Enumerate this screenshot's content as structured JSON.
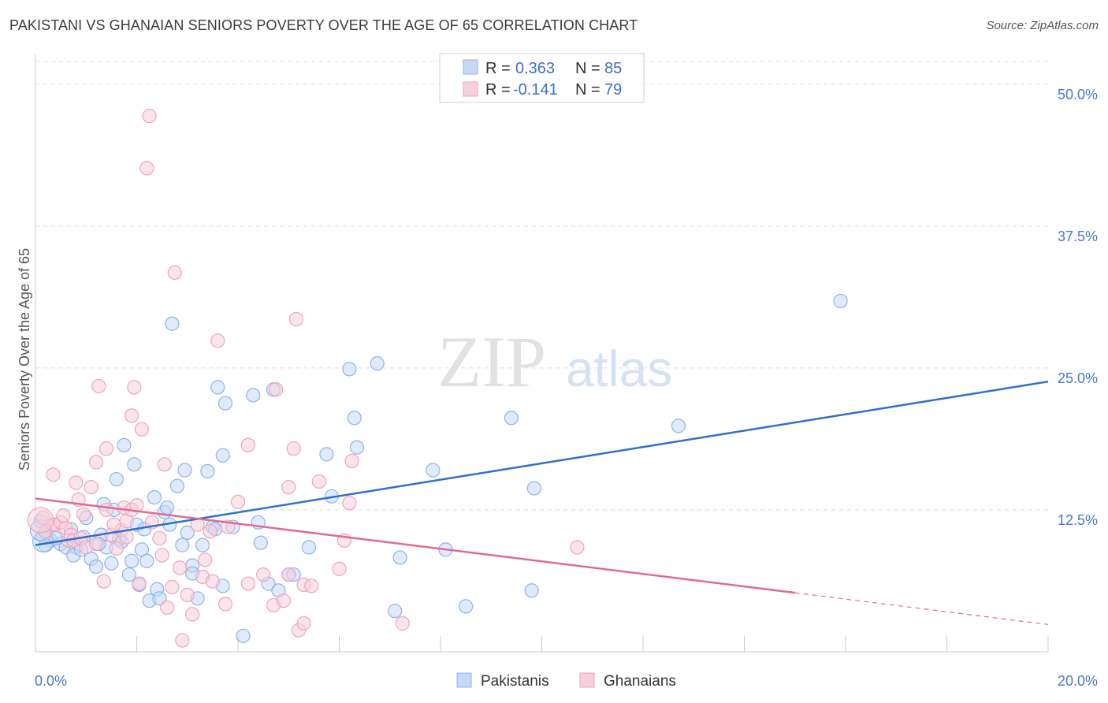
{
  "title": "PAKISTANI VS GHANAIAN SENIORS POVERTY OVER THE AGE OF 65 CORRELATION CHART",
  "source": "Source: ZipAtlas.com",
  "watermark": {
    "zip": "ZIP",
    "atlas": "atlas"
  },
  "colors": {
    "blue": "#8fb4e8",
    "blue_fill": "#c5d8f5",
    "blue_line": "#2f6fcc",
    "pink": "#f0a3bd",
    "pink_fill": "#f8cfdc",
    "pink_line": "#e06a95",
    "tick": "#4a78c8",
    "grid": "#dcdcdc"
  },
  "legend": {
    "rows": [
      {
        "r_label": "R =",
        "r_value": "0.363",
        "n_label": "N =",
        "n_value": "85"
      },
      {
        "r_label": "R =",
        "r_value": "-0.141",
        "n_label": "N =",
        "n_value": "79"
      }
    ]
  },
  "bottom_legend": {
    "pakistanis": "Pakistanis",
    "ghanaians": "Ghanaians"
  },
  "chart_data": {
    "type": "scatter",
    "ylabel": "Seniors Poverty Over the Age of 65",
    "xlim": [
      0,
      20
    ],
    "ylim": [
      0,
      52
    ],
    "y_ticks": [
      {
        "v": 12.5,
        "label": "12.5%"
      },
      {
        "v": 25,
        "label": "25.0%"
      },
      {
        "v": 37.5,
        "label": "37.5%"
      },
      {
        "v": 50,
        "label": "50.0%"
      }
    ],
    "x_tick_labels": {
      "min": "0.0%",
      "max": "20.0%"
    },
    "grid": true,
    "legend_position": "top-center",
    "series": [
      {
        "name": "Pakistanis",
        "color": "#8fb4e8",
        "trend": {
          "x0": 0,
          "y0": 9.4,
          "x1": 20,
          "y1": 23.8
        },
        "points": [
          [
            0.1,
            11.5
          ],
          [
            0.2,
            10.5
          ],
          [
            0.3,
            9.8
          ],
          [
            0.2,
            9.4
          ],
          [
            0.5,
            9.5
          ],
          [
            0.6,
            9.2
          ],
          [
            0.7,
            10.8
          ],
          [
            0.8,
            9.2
          ],
          [
            0.75,
            8.5
          ],
          [
            0.9,
            9.0
          ],
          [
            1.0,
            11.8
          ],
          [
            1.1,
            8.2
          ],
          [
            1.2,
            7.5
          ],
          [
            1.3,
            10.3
          ],
          [
            1.35,
            13.0
          ],
          [
            1.4,
            9.2
          ],
          [
            1.5,
            7.8
          ],
          [
            1.55,
            12.5
          ],
          [
            1.6,
            15.2
          ],
          [
            1.65,
            9.9
          ],
          [
            1.75,
            18.2
          ],
          [
            1.85,
            6.8
          ],
          [
            1.9,
            8.0
          ],
          [
            1.95,
            16.5
          ],
          [
            2.0,
            11.2
          ],
          [
            2.05,
            5.9
          ],
          [
            2.1,
            9.0
          ],
          [
            2.2,
            8.0
          ],
          [
            2.25,
            4.5
          ],
          [
            2.35,
            13.6
          ],
          [
            2.4,
            5.5
          ],
          [
            2.45,
            4.7
          ],
          [
            2.55,
            12.3
          ],
          [
            2.6,
            12.7
          ],
          [
            2.65,
            11.2
          ],
          [
            2.7,
            28.9
          ],
          [
            2.8,
            14.6
          ],
          [
            2.9,
            9.4
          ],
          [
            2.95,
            16.0
          ],
          [
            3.1,
            7.6
          ],
          [
            3.1,
            6.9
          ],
          [
            3.2,
            4.7
          ],
          [
            3.3,
            9.4
          ],
          [
            3.4,
            15.9
          ],
          [
            3.5,
            11.0
          ],
          [
            3.6,
            23.3
          ],
          [
            3.7,
            5.8
          ],
          [
            3.7,
            17.3
          ],
          [
            3.75,
            21.9
          ],
          [
            3.9,
            11.0
          ],
          [
            4.1,
            1.4
          ],
          [
            4.3,
            22.6
          ],
          [
            4.4,
            11.4
          ],
          [
            4.45,
            9.6
          ],
          [
            4.6,
            6.0
          ],
          [
            4.7,
            23.1
          ],
          [
            4.8,
            5.4
          ],
          [
            5.0,
            6.8
          ],
          [
            5.1,
            6.8
          ],
          [
            5.4,
            9.2
          ],
          [
            5.75,
            17.4
          ],
          [
            5.85,
            13.7
          ],
          [
            6.2,
            24.9
          ],
          [
            6.3,
            20.6
          ],
          [
            6.35,
            18.0
          ],
          [
            6.75,
            25.4
          ],
          [
            7.1,
            3.6
          ],
          [
            7.2,
            8.3
          ],
          [
            7.85,
            16.0
          ],
          [
            8.1,
            9.0
          ],
          [
            8.5,
            4.0
          ],
          [
            9.4,
            20.6
          ],
          [
            9.8,
            5.4
          ],
          [
            9.85,
            14.4
          ],
          [
            12.7,
            19.9
          ],
          [
            15.9,
            30.9
          ],
          [
            0.15,
            10.2
          ],
          [
            0.4,
            10.0
          ],
          [
            0.95,
            10.1
          ],
          [
            1.25,
            9.5
          ],
          [
            1.7,
            9.7
          ],
          [
            2.15,
            10.8
          ],
          [
            3.0,
            10.5
          ],
          [
            3.55,
            10.8
          ],
          [
            0.3,
            11.1
          ]
        ],
        "big_points": [
          [
            0.15,
            9.7
          ],
          [
            0.1,
            10.7
          ]
        ]
      },
      {
        "name": "Ghanaians",
        "color": "#f0a3bd",
        "trend": {
          "x0": 0,
          "y0": 13.5,
          "x1": 15,
          "y1": 5.2,
          "dash_x1": 20,
          "dash_y1": 2.4
        },
        "points": [
          [
            0.15,
            11.8
          ],
          [
            0.2,
            10.6
          ],
          [
            0.35,
            11.2
          ],
          [
            0.4,
            11.2
          ],
          [
            0.35,
            15.6
          ],
          [
            0.5,
            11.4
          ],
          [
            0.6,
            10.9
          ],
          [
            0.65,
            9.8
          ],
          [
            0.7,
            10.3
          ],
          [
            0.75,
            9.8
          ],
          [
            0.8,
            14.9
          ],
          [
            0.85,
            13.4
          ],
          [
            0.9,
            10.0
          ],
          [
            1.0,
            9.2
          ],
          [
            0.95,
            12.1
          ],
          [
            1.1,
            14.5
          ],
          [
            1.2,
            9.5
          ],
          [
            1.2,
            16.7
          ],
          [
            1.25,
            23.4
          ],
          [
            1.35,
            6.2
          ],
          [
            1.4,
            12.5
          ],
          [
            1.4,
            17.9
          ],
          [
            1.5,
            10.3
          ],
          [
            1.6,
            9.1
          ],
          [
            1.7,
            10.7
          ],
          [
            1.75,
            12.7
          ],
          [
            1.8,
            11.5
          ],
          [
            1.8,
            10.1
          ],
          [
            1.9,
            12.5
          ],
          [
            1.9,
            20.8
          ],
          [
            1.95,
            23.3
          ],
          [
            2.05,
            6.0
          ],
          [
            2.1,
            19.6
          ],
          [
            2.25,
            47.2
          ],
          [
            2.2,
            42.6
          ],
          [
            2.3,
            11.4
          ],
          [
            2.45,
            10.0
          ],
          [
            2.5,
            8.5
          ],
          [
            2.55,
            16.5
          ],
          [
            2.6,
            3.9
          ],
          [
            2.7,
            5.7
          ],
          [
            2.75,
            33.4
          ],
          [
            2.85,
            7.4
          ],
          [
            2.9,
            1.0
          ],
          [
            3.0,
            5.0
          ],
          [
            3.1,
            3.3
          ],
          [
            3.2,
            11.2
          ],
          [
            3.3,
            6.6
          ],
          [
            3.35,
            8.1
          ],
          [
            3.5,
            6.2
          ],
          [
            3.6,
            27.4
          ],
          [
            3.75,
            4.2
          ],
          [
            3.8,
            11.0
          ],
          [
            4.2,
            6.0
          ],
          [
            4.2,
            18.2
          ],
          [
            4.5,
            6.8
          ],
          [
            4.7,
            4.1
          ],
          [
            4.75,
            23.1
          ],
          [
            4.9,
            4.5
          ],
          [
            5.0,
            6.8
          ],
          [
            5.1,
            17.9
          ],
          [
            5.15,
            29.3
          ],
          [
            5.2,
            1.9
          ],
          [
            5.3,
            2.5
          ],
          [
            5.3,
            5.9
          ],
          [
            5.45,
            5.8
          ],
          [
            5.6,
            15.0
          ],
          [
            6.0,
            7.3
          ],
          [
            6.1,
            9.8
          ],
          [
            6.2,
            13.1
          ],
          [
            6.25,
            16.8
          ],
          [
            7.25,
            2.5
          ],
          [
            10.7,
            9.2
          ],
          [
            1.55,
            11.2
          ],
          [
            0.55,
            12.0
          ],
          [
            2.0,
            12.9
          ],
          [
            3.45,
            10.6
          ],
          [
            4.0,
            13.2
          ],
          [
            5.0,
            14.5
          ]
        ],
        "big_points": [
          [
            0.1,
            11.6
          ]
        ]
      }
    ]
  }
}
